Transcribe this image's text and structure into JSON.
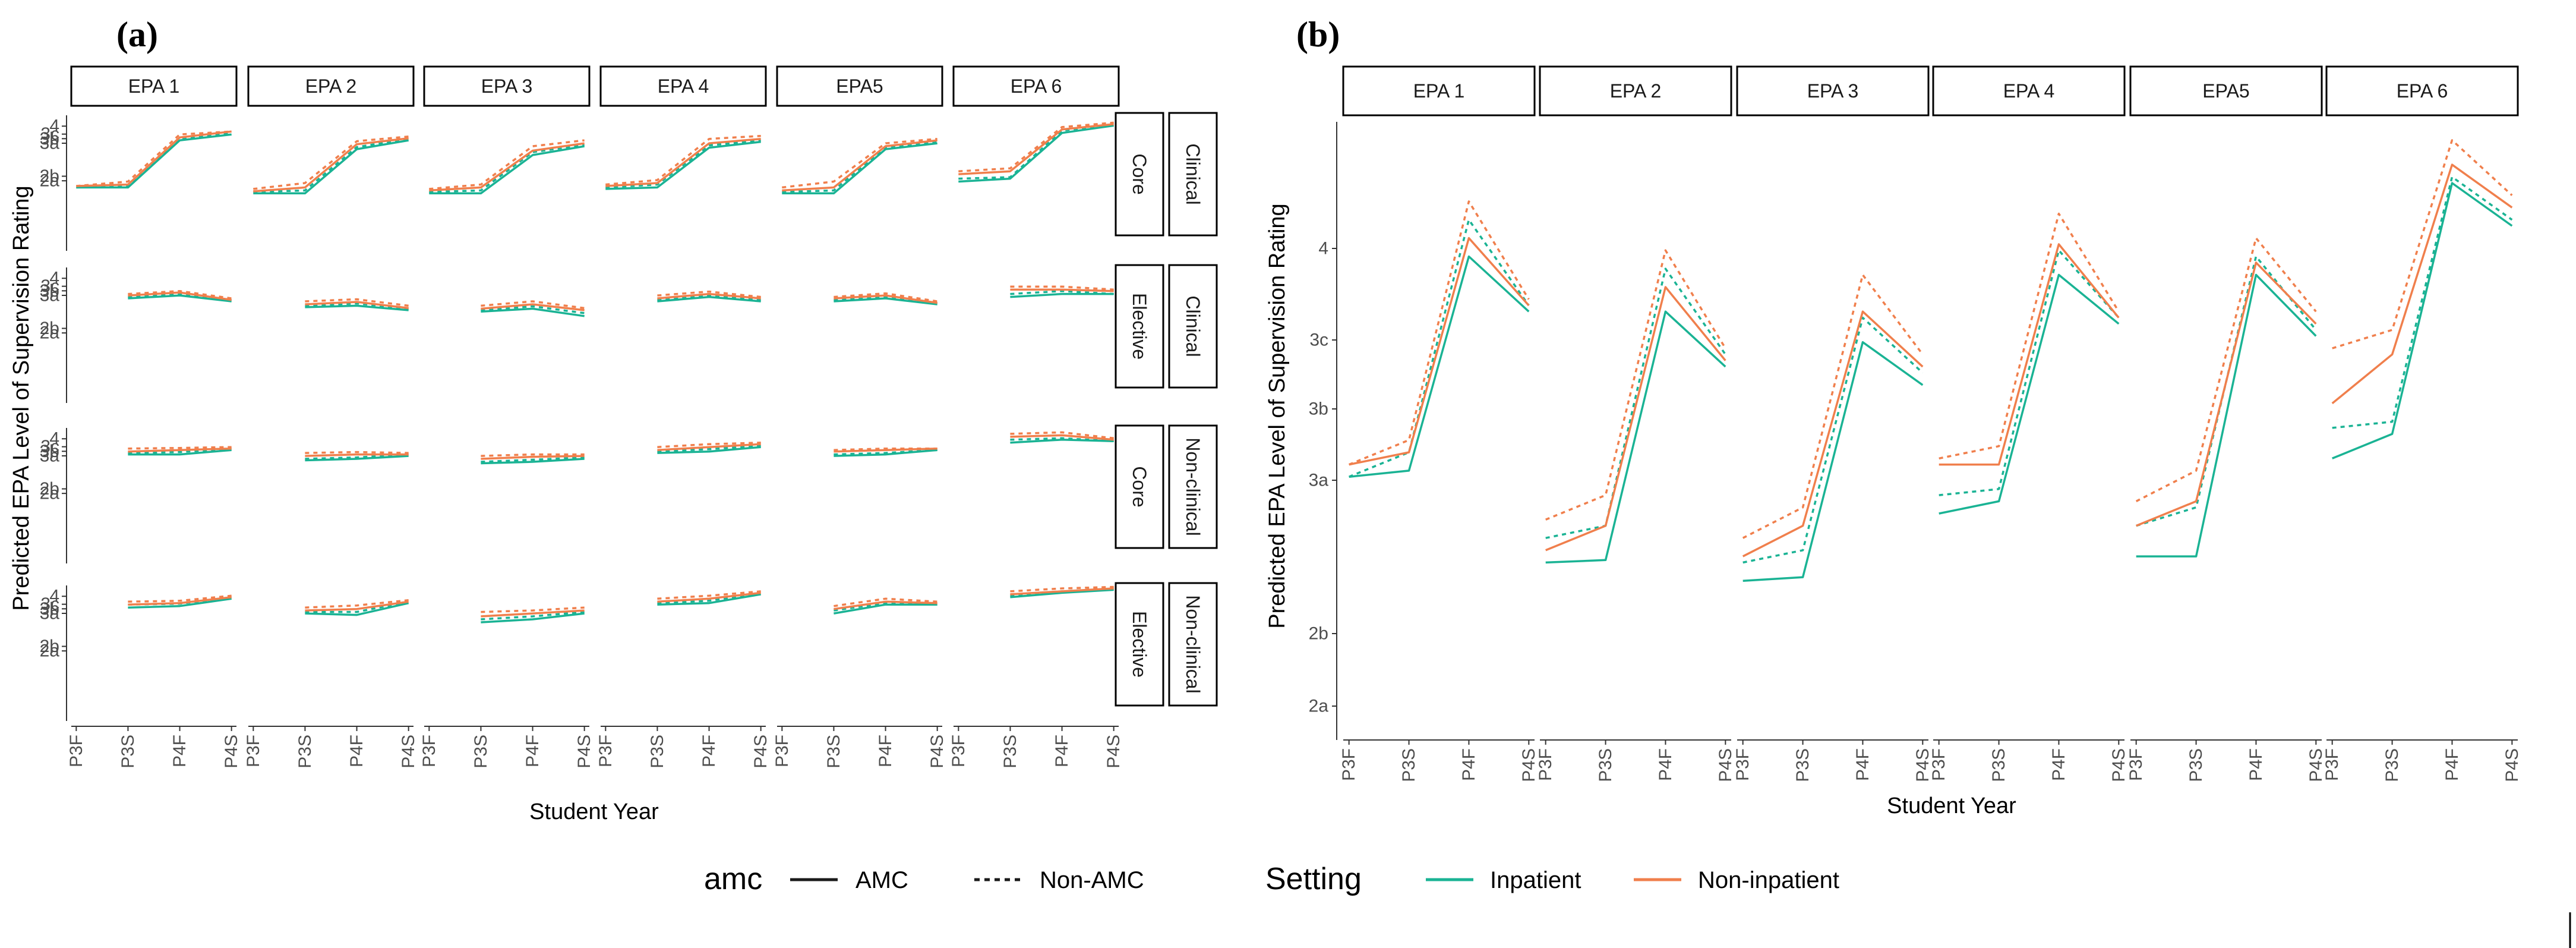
{
  "panel_a_label": "(a)",
  "panel_b_label": "(b)",
  "legend": {
    "amc_title": "amc",
    "amc_items": [
      "AMC",
      "Non-AMC"
    ],
    "setting_title": "Setting",
    "setting_items": [
      "Inpatient",
      "Non-inpatient"
    ]
  },
  "colors": {
    "inpatient": "#1ab394",
    "non_inpatient": "#f07f4c",
    "axis": "#333333"
  },
  "chart_data": [
    {
      "type": "line",
      "panel": "(a)",
      "ylabel": "Predicted EPA Level of Supervision Rating",
      "xlabel": "Student Year",
      "categories": [
        "P3F",
        "P3S",
        "P4F",
        "P4S"
      ],
      "y_ticks": [
        "2a",
        "2b",
        "3a",
        "3b",
        "3c",
        "4"
      ],
      "ylim": [
        1.9,
        6.5
      ],
      "columns": [
        "EPA 1",
        "EPA 2",
        "EPA 3",
        "EPA 4",
        "EPA5",
        "EPA 6"
      ],
      "rows": [
        {
          "group": "Clinical",
          "type": "Core"
        },
        {
          "group": "Clinical",
          "type": "Elective"
        },
        {
          "group": "Non-clinical",
          "type": "Core"
        },
        {
          "group": "Non-clinical",
          "type": "Elective"
        }
      ],
      "series_names": [
        "Inpatient AMC",
        "Inpatient Non-AMC",
        "Non-inpatient AMC",
        "Non-inpatient Non-AMC"
      ],
      "panels": [
        [
          [
            [
              4.05,
              4.05,
              5.65,
              5.85
            ],
            [
              4.05,
              4.1,
              5.72,
              5.9
            ],
            [
              4.1,
              4.15,
              5.75,
              5.95
            ],
            [
              4.1,
              4.25,
              5.85,
              5.95
            ]
          ],
          [
            [
              3.85,
              3.85,
              5.35,
              5.65
            ],
            [
              3.9,
              3.95,
              5.42,
              5.7
            ],
            [
              3.92,
              4.05,
              5.52,
              5.72
            ],
            [
              4.0,
              4.2,
              5.62,
              5.78
            ]
          ],
          [
            [
              3.85,
              3.85,
              5.15,
              5.45
            ],
            [
              3.9,
              3.95,
              5.25,
              5.5
            ],
            [
              3.95,
              4.05,
              5.3,
              5.55
            ],
            [
              4.0,
              4.15,
              5.45,
              5.65
            ]
          ],
          [
            [
              4.0,
              4.05,
              5.4,
              5.6
            ],
            [
              4.05,
              4.15,
              5.48,
              5.65
            ],
            [
              4.1,
              4.2,
              5.55,
              5.7
            ],
            [
              4.15,
              4.3,
              5.7,
              5.8
            ]
          ],
          [
            [
              3.85,
              3.85,
              5.35,
              5.55
            ],
            [
              3.9,
              3.95,
              5.42,
              5.6
            ],
            [
              3.95,
              4.05,
              5.45,
              5.65
            ],
            [
              4.05,
              4.25,
              5.55,
              5.7
            ]
          ],
          [
            [
              4.25,
              4.35,
              5.9,
              6.15
            ],
            [
              4.35,
              4.4,
              5.98,
              6.2
            ],
            [
              4.5,
              4.6,
              6.02,
              6.2
            ],
            [
              4.6,
              4.7,
              6.1,
              6.25
            ]
          ]
        ],
        [
          [
            [
              null,
              5.45,
              5.55,
              5.35
            ],
            [
              null,
              5.5,
              5.6,
              5.4
            ],
            [
              null,
              5.55,
              5.65,
              5.4
            ],
            [
              null,
              5.6,
              5.7,
              5.45
            ]
          ],
          [
            [
              null,
              5.15,
              5.2,
              5.05
            ],
            [
              null,
              5.2,
              5.28,
              5.1
            ],
            [
              null,
              5.25,
              5.33,
              5.12
            ],
            [
              null,
              5.35,
              5.42,
              5.2
            ]
          ],
          [
            [
              null,
              5.0,
              5.1,
              4.85
            ],
            [
              null,
              5.05,
              5.18,
              4.95
            ],
            [
              null,
              5.1,
              5.25,
              5.05
            ],
            [
              null,
              5.2,
              5.35,
              5.12
            ]
          ],
          [
            [
              null,
              5.35,
              5.5,
              5.35
            ],
            [
              null,
              5.4,
              5.55,
              5.4
            ],
            [
              null,
              5.45,
              5.6,
              5.45
            ],
            [
              null,
              5.55,
              5.68,
              5.5
            ]
          ],
          [
            [
              null,
              5.35,
              5.45,
              5.25
            ],
            [
              null,
              5.4,
              5.5,
              5.3
            ],
            [
              null,
              5.45,
              5.55,
              5.3
            ],
            [
              null,
              5.5,
              5.62,
              5.35
            ]
          ],
          [
            [
              null,
              5.5,
              5.6,
              5.6
            ],
            [
              null,
              5.6,
              5.7,
              5.6
            ],
            [
              null,
              5.75,
              5.75,
              5.7
            ],
            [
              null,
              5.85,
              5.85,
              5.75
            ]
          ]
        ],
        [
          [
            [
              null,
              5.6,
              5.6,
              5.75
            ],
            [
              null,
              5.65,
              5.68,
              5.8
            ],
            [
              null,
              5.7,
              5.75,
              5.8
            ],
            [
              null,
              5.8,
              5.82,
              5.85
            ]
          ],
          [
            [
              null,
              5.4,
              5.45,
              5.55
            ],
            [
              null,
              5.45,
              5.5,
              5.6
            ],
            [
              null,
              5.55,
              5.6,
              5.6
            ],
            [
              null,
              5.65,
              5.68,
              5.65
            ]
          ],
          [
            [
              null,
              5.3,
              5.35,
              5.45
            ],
            [
              null,
              5.35,
              5.42,
              5.5
            ],
            [
              null,
              5.45,
              5.52,
              5.55
            ],
            [
              null,
              5.55,
              5.6,
              5.6
            ]
          ],
          [
            [
              null,
              5.65,
              5.7,
              5.85
            ],
            [
              null,
              5.7,
              5.78,
              5.9
            ],
            [
              null,
              5.75,
              5.85,
              5.95
            ],
            [
              null,
              5.85,
              5.95,
              6.0
            ]
          ],
          [
            [
              null,
              5.55,
              5.6,
              5.75
            ],
            [
              null,
              5.6,
              5.65,
              5.75
            ],
            [
              null,
              5.7,
              5.75,
              5.8
            ],
            [
              null,
              5.75,
              5.8,
              5.8
            ]
          ],
          [
            [
              null,
              6.0,
              6.1,
              6.05
            ],
            [
              null,
              6.1,
              6.15,
              6.05
            ],
            [
              null,
              6.2,
              6.25,
              6.1
            ],
            [
              null,
              6.3,
              6.35,
              6.15
            ]
          ]
        ],
        [
          [
            [
              null,
              5.75,
              5.8,
              6.05
            ],
            [
              null,
              5.85,
              5.88,
              6.1
            ],
            [
              null,
              5.85,
              5.9,
              6.1
            ],
            [
              null,
              5.95,
              5.98,
              6.15
            ]
          ],
          [
            [
              null,
              5.55,
              5.5,
              5.9
            ],
            [
              null,
              5.6,
              5.6,
              5.95
            ],
            [
              null,
              5.65,
              5.7,
              5.95
            ],
            [
              null,
              5.75,
              5.82,
              6.0
            ]
          ],
          [
            [
              null,
              5.25,
              5.35,
              5.55
            ],
            [
              null,
              5.35,
              5.45,
              5.6
            ],
            [
              null,
              5.45,
              5.55,
              5.65
            ],
            [
              null,
              5.6,
              5.65,
              5.75
            ]
          ],
          [
            [
              null,
              5.85,
              5.9,
              6.2
            ],
            [
              null,
              5.9,
              5.98,
              6.25
            ],
            [
              null,
              5.95,
              6.05,
              6.25
            ],
            [
              null,
              6.05,
              6.15,
              6.3
            ]
          ],
          [
            [
              null,
              5.55,
              5.85,
              5.85
            ],
            [
              null,
              5.65,
              5.9,
              5.9
            ],
            [
              null,
              5.7,
              5.95,
              5.9
            ],
            [
              null,
              5.8,
              6.05,
              5.95
            ]
          ],
          [
            [
              null,
              6.1,
              6.25,
              6.35
            ],
            [
              null,
              6.15,
              6.3,
              6.4
            ],
            [
              null,
              6.2,
              6.3,
              6.4
            ],
            [
              null,
              6.3,
              6.4,
              6.45
            ]
          ]
        ]
      ]
    },
    {
      "type": "line",
      "panel": "(b)",
      "ylabel": "Predicted EPA Level of Supervision Rating",
      "xlabel": "Student Year",
      "categories": [
        "P3F",
        "P3S",
        "P4F",
        "P4S"
      ],
      "y_ticks": [
        "2a",
        "2b",
        "3a",
        "3b",
        "3c",
        "4"
      ],
      "ylim": [
        1.55,
        6.6
      ],
      "columns": [
        "EPA 1",
        "EPA 2",
        "EPA 3",
        "EPA 4",
        "EPA5",
        "EPA 6"
      ],
      "series_names": [
        "Inpatient AMC",
        "Inpatient Non-AMC",
        "Non-inpatient AMC",
        "Non-inpatient Non-AMC"
      ],
      "panels": [
        [
          [
            3.7,
            3.75,
            5.5,
            5.05
          ],
          [
            3.7,
            3.9,
            5.8,
            5.1
          ],
          [
            3.8,
            3.9,
            5.65,
            5.1
          ],
          [
            3.8,
            4.0,
            5.95,
            5.15
          ]
        ],
        [
          [
            3.0,
            3.02,
            5.05,
            4.6
          ],
          [
            3.2,
            3.3,
            5.4,
            4.7
          ],
          [
            3.1,
            3.3,
            5.25,
            4.65
          ],
          [
            3.35,
            3.55,
            5.55,
            4.75
          ]
        ],
        [
          [
            2.85,
            2.88,
            4.8,
            4.45
          ],
          [
            3.0,
            3.1,
            5.0,
            4.55
          ],
          [
            3.05,
            3.3,
            5.05,
            4.6
          ],
          [
            3.2,
            3.45,
            5.35,
            4.7
          ]
        ],
        [
          [
            3.4,
            3.5,
            5.35,
            4.95
          ],
          [
            3.55,
            3.6,
            5.55,
            5.0
          ],
          [
            3.8,
            3.8,
            5.6,
            5.0
          ],
          [
            3.85,
            3.95,
            5.85,
            5.05
          ]
        ],
        [
          [
            3.05,
            3.05,
            5.35,
            4.85
          ],
          [
            3.3,
            3.45,
            5.5,
            4.9
          ],
          [
            3.3,
            3.5,
            5.45,
            4.95
          ],
          [
            3.5,
            3.75,
            5.65,
            5.05
          ]
        ],
        [
          [
            3.85,
            4.05,
            6.1,
            5.75
          ],
          [
            4.1,
            4.15,
            6.15,
            5.8
          ],
          [
            4.3,
            4.7,
            6.25,
            5.9
          ],
          [
            4.75,
            4.9,
            6.45,
            6.0
          ]
        ]
      ]
    }
  ]
}
